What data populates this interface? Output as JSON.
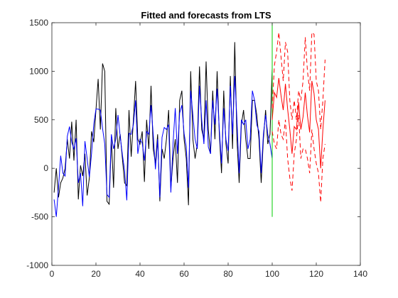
{
  "chart_data": {
    "type": "line",
    "title": "Fitted and forecasts from LTS",
    "xlabel": "",
    "ylabel": "",
    "xlim": [
      0,
      140
    ],
    "ylim": [
      -1000,
      1500
    ],
    "xticks": [
      0,
      20,
      40,
      60,
      80,
      100,
      120,
      140
    ],
    "yticks": [
      -1000,
      -500,
      0,
      500,
      1000,
      1500
    ],
    "grid": false,
    "colors": {
      "actual": "#000000",
      "fitted": "#0000ff",
      "divider": "#00cc00",
      "forecast": "#ff0000"
    },
    "series": [
      {
        "style": "solid",
        "color": "#000000",
        "x": [
          1,
          2,
          3,
          4,
          5,
          6,
          7,
          8,
          9,
          10,
          11,
          12,
          13,
          14,
          15,
          16,
          17,
          18,
          19,
          20,
          21,
          22,
          23,
          24,
          25,
          26,
          27,
          28,
          29,
          30,
          31,
          32,
          33,
          34,
          35,
          36,
          37,
          38,
          39,
          40,
          41,
          42,
          43,
          44,
          45,
          46,
          47,
          48,
          49,
          50,
          51,
          52,
          53,
          54,
          55,
          56,
          57,
          58,
          59,
          60,
          61,
          62,
          63,
          64,
          65,
          66,
          67,
          68,
          69,
          70,
          71,
          72,
          73,
          74,
          75,
          76,
          77,
          78,
          79,
          80,
          81,
          82,
          83,
          84,
          85,
          86,
          87,
          88,
          89,
          90,
          91,
          92,
          93,
          94,
          95,
          96,
          97,
          98,
          99,
          100
        ],
        "y": [
          -250,
          0,
          -300,
          -150,
          -100,
          0,
          300,
          100,
          480,
          80,
          500,
          -320,
          30,
          -80,
          150,
          -280,
          -100,
          380,
          270,
          600,
          920,
          400,
          1080,
          1000,
          -340,
          -370,
          300,
          -200,
          620,
          200,
          350,
          100,
          -150,
          -180,
          600,
          120,
          500,
          900,
          300,
          250,
          380,
          -140,
          500,
          200,
          850,
          200,
          50,
          350,
          -340,
          200,
          100,
          300,
          600,
          -200,
          100,
          300,
          -150,
          700,
          800,
          300,
          100,
          -380,
          1000,
          300,
          100,
          250,
          1050,
          400,
          300,
          1100,
          400,
          150,
          800,
          300,
          1000,
          350,
          -50,
          800,
          250,
          50,
          950,
          200,
          1300,
          300,
          -150,
          450,
          600,
          300,
          100,
          100,
          700,
          700,
          550,
          300,
          -150,
          300,
          600,
          250,
          350,
          1030
        ]
      },
      {
        "style": "solid",
        "color": "#0000ff",
        "x": [
          1,
          2,
          3,
          4,
          5,
          6,
          7,
          8,
          9,
          10,
          11,
          12,
          13,
          14,
          15,
          16,
          17,
          18,
          19,
          20,
          21,
          22,
          23,
          24,
          25,
          26,
          27,
          28,
          29,
          30,
          31,
          32,
          33,
          34,
          35,
          36,
          37,
          38,
          39,
          40,
          41,
          42,
          43,
          44,
          45,
          46,
          47,
          48,
          49,
          50,
          51,
          52,
          53,
          54,
          55,
          56,
          57,
          58,
          59,
          60,
          61,
          62,
          63,
          64,
          65,
          66,
          67,
          68,
          69,
          70,
          71,
          72,
          73,
          74,
          75,
          76,
          77,
          78,
          79,
          80,
          81,
          82,
          83,
          84,
          85,
          86,
          87,
          88,
          89,
          90,
          91,
          92,
          93,
          94,
          95,
          96,
          97,
          98,
          99,
          100
        ],
        "y": [
          -320,
          -500,
          -200,
          130,
          -50,
          -80,
          330,
          430,
          270,
          200,
          310,
          -150,
          -50,
          -390,
          280,
          100,
          -90,
          150,
          450,
          610,
          610,
          600,
          410,
          250,
          -270,
          -300,
          350,
          200,
          300,
          550,
          330,
          140,
          -20,
          -330,
          360,
          350,
          450,
          700,
          150,
          300,
          260,
          80,
          380,
          350,
          650,
          350,
          -10,
          300,
          -300,
          320,
          420,
          400,
          450,
          -250,
          260,
          620,
          150,
          570,
          650,
          360,
          220,
          -200,
          800,
          550,
          300,
          200,
          850,
          500,
          250,
          700,
          220,
          150,
          700,
          450,
          820,
          400,
          50,
          620,
          300,
          180,
          850,
          350,
          950,
          500,
          -50,
          500,
          450,
          500,
          200,
          300,
          800,
          700,
          450,
          380,
          -50,
          350,
          550,
          350,
          250,
          100
        ]
      },
      {
        "style": "solid",
        "color": "#00cc00",
        "x": [
          100,
          100
        ],
        "y": [
          -500,
          1500
        ]
      },
      {
        "style": "solid",
        "color": "#ff0000",
        "x": [
          100,
          101,
          102,
          103,
          104,
          105,
          106,
          107,
          108,
          109,
          110,
          111,
          112,
          113,
          114,
          115,
          116,
          117,
          118,
          119,
          120,
          121,
          122,
          123,
          124
        ],
        "y": [
          500,
          780,
          730,
          930,
          750,
          600,
          870,
          610,
          400,
          150,
          430,
          400,
          680,
          400,
          530,
          780,
          540,
          370,
          900,
          770,
          500,
          400,
          0,
          400,
          700
        ]
      },
      {
        "style": "dashed",
        "color": "#ff0000",
        "x": [
          100,
          101,
          102,
          103,
          104,
          105,
          106,
          107,
          108,
          109,
          110,
          111,
          112,
          113,
          114,
          115,
          116,
          117,
          118,
          119,
          120,
          121,
          122,
          123,
          124
        ],
        "y": [
          620,
          1060,
          1200,
          1400,
          1150,
          900,
          1300,
          1200,
          700,
          500,
          700,
          500,
          800,
          700,
          900,
          1350,
          1000,
          800,
          1400,
          1380,
          900,
          800,
          400,
          700,
          1120
        ]
      },
      {
        "style": "dashed",
        "color": "#ff0000",
        "x": [
          100,
          101,
          102,
          103,
          104,
          105,
          106,
          107,
          108,
          109,
          110,
          111,
          112,
          113,
          114,
          115,
          116,
          117,
          118,
          119,
          120,
          121,
          122,
          123,
          124
        ],
        "y": [
          380,
          250,
          200,
          500,
          350,
          300,
          500,
          100,
          -100,
          -230,
          150,
          300,
          550,
          100,
          200,
          200,
          100,
          -50,
          400,
          200,
          50,
          -50,
          -350,
          100,
          250
        ]
      }
    ]
  }
}
